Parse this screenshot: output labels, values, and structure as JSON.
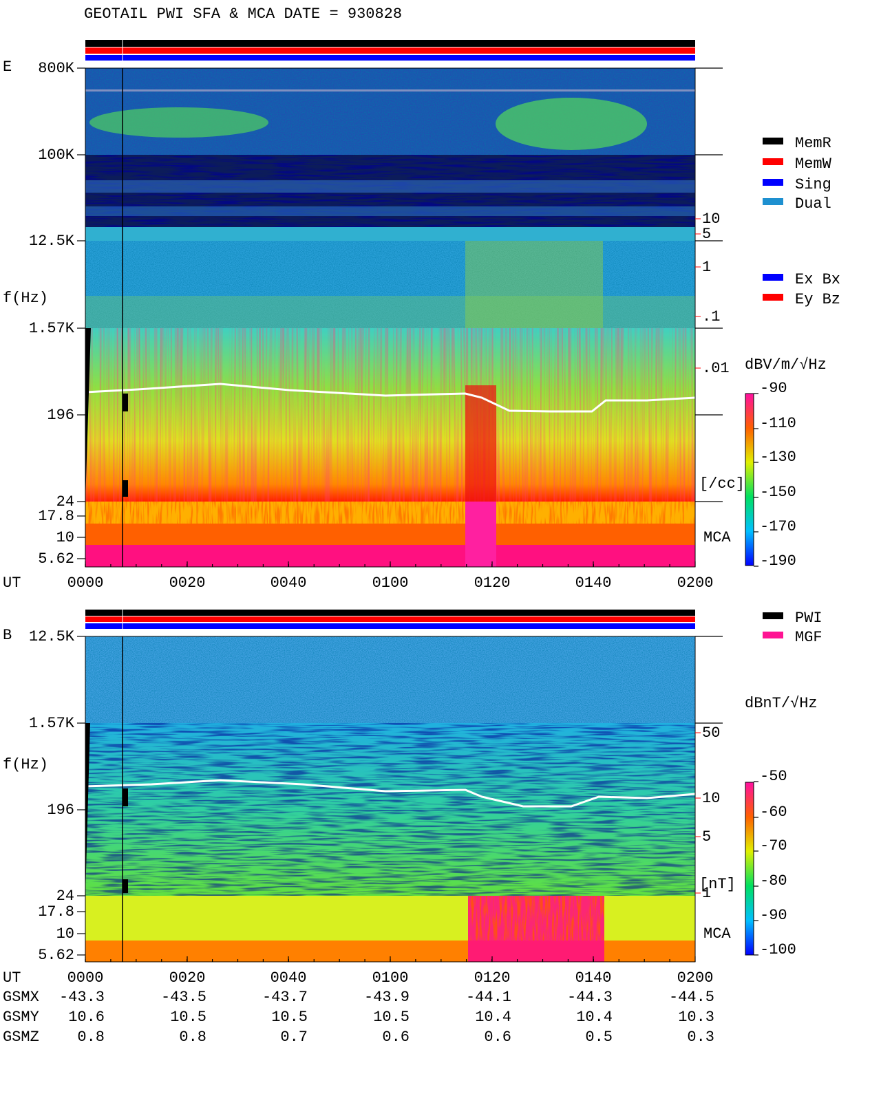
{
  "header": {
    "title": "GEOTAIL  PWI SFA & MCA   DATE = 930828"
  },
  "status_legend": [
    {
      "label": "MemR",
      "color": "#000000"
    },
    {
      "label": "MemW",
      "color": "#ff0000"
    },
    {
      "label": "Sing",
      "color": "#0000ff"
    },
    {
      "label": "Dual",
      "color": "#1e90d0"
    }
  ],
  "component_legend": [
    {
      "label": "Ex Bx",
      "color": "#0000ff"
    },
    {
      "label": "Ey Bz",
      "color": "#ff0000"
    }
  ],
  "source_legend": [
    {
      "label": "PWI",
      "color": "#000000"
    },
    {
      "label": "MGF",
      "color": "#ff1493"
    }
  ],
  "panels": [
    {
      "label": "E",
      "y_title": "f(Hz)",
      "freq_ticks": [
        "800K",
        "100K",
        "12.5K",
        "1.57K",
        "196",
        "24",
        "17.8",
        "10",
        "5.62"
      ],
      "density_ticks": [
        "10",
        "5",
        "1",
        ".1",
        ".01"
      ],
      "density_unit": "[/cc]",
      "mca_label": "MCA",
      "colorbar_title": "dBV/m/√Hz",
      "colorbar_ticks": [
        "-90",
        "-110",
        "-130",
        "-150",
        "-170",
        "-190"
      ]
    },
    {
      "label": "B",
      "y_title": "f(Hz)",
      "freq_ticks": [
        "12.5K",
        "1.57K",
        "196",
        "24",
        "17.8",
        "10",
        "5.62"
      ],
      "density_ticks": [
        "50",
        "10",
        "5",
        "1"
      ],
      "density_unit": "[nT]",
      "mca_label": "MCA",
      "colorbar_title": "dBnT/√Hz",
      "colorbar_ticks": [
        "-50",
        "-60",
        "-70",
        "-80",
        "-90",
        "-100"
      ]
    }
  ],
  "time_axis": {
    "label": "UT",
    "ticks": [
      "0000",
      "0020",
      "0040",
      "0100",
      "0120",
      "0140",
      "0200"
    ]
  },
  "orbit": [
    {
      "label": "GSMX",
      "values": [
        "-43.3",
        "-43.5",
        "-43.7",
        "-43.9",
        "-44.1",
        "-44.3",
        "-44.5"
      ]
    },
    {
      "label": "GSMY",
      "values": [
        "10.6",
        "10.5",
        "10.5",
        "10.5",
        "10.4",
        "10.4",
        "10.3"
      ]
    },
    {
      "label": "GSMZ",
      "values": [
        "0.8",
        "0.8",
        "0.7",
        "0.6",
        "0.6",
        "0.5",
        "0.3"
      ]
    }
  ]
}
